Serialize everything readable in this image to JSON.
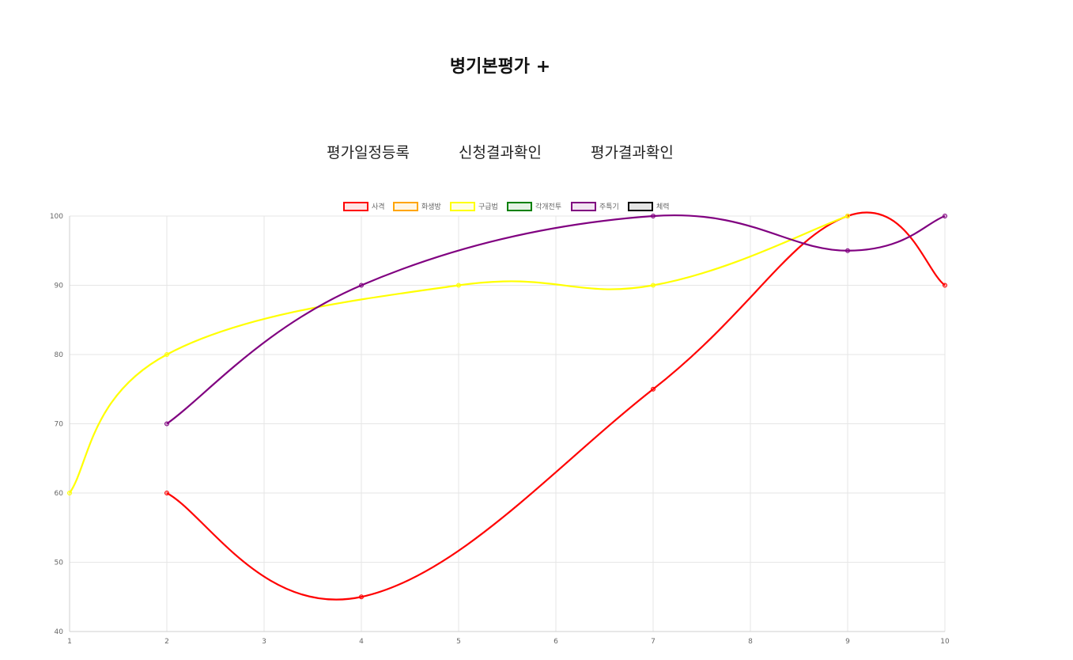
{
  "header": {
    "title": "병기본평가 +"
  },
  "nav": {
    "items": [
      {
        "label": "평가일정등록"
      },
      {
        "label": "신청결과확인"
      },
      {
        "label": "평가결과확인"
      }
    ]
  },
  "chart_data": {
    "type": "line",
    "title": "",
    "xlabel": "",
    "ylabel": "",
    "x": [
      1,
      2,
      3,
      4,
      5,
      6,
      7,
      8,
      9,
      10
    ],
    "ylim": [
      40,
      100
    ],
    "yticks": [
      40,
      50,
      60,
      70,
      80,
      90,
      100
    ],
    "grid": true,
    "legend_position": "top-center",
    "curve": "smooth",
    "series": [
      {
        "name": "사격",
        "color": "#ff0000",
        "values": [
          null,
          60,
          null,
          45,
          null,
          null,
          75,
          null,
          100,
          90
        ]
      },
      {
        "name": "화생방",
        "color": "#ffa500",
        "values": [
          null,
          null,
          null,
          null,
          null,
          null,
          null,
          null,
          null,
          null
        ]
      },
      {
        "name": "구급법",
        "color": "#ffff00",
        "values": [
          60,
          80,
          null,
          null,
          90,
          null,
          90,
          null,
          100,
          null
        ]
      },
      {
        "name": "각개전투",
        "color": "#008000",
        "values": [
          null,
          null,
          null,
          null,
          null,
          null,
          null,
          null,
          null,
          null
        ]
      },
      {
        "name": "주특기",
        "color": "#800080",
        "values": [
          null,
          70,
          null,
          90,
          null,
          null,
          100,
          null,
          95,
          100
        ]
      },
      {
        "name": "체력",
        "color": "#000000",
        "values": [
          null,
          null,
          null,
          null,
          null,
          null,
          null,
          null,
          null,
          null
        ]
      }
    ]
  }
}
